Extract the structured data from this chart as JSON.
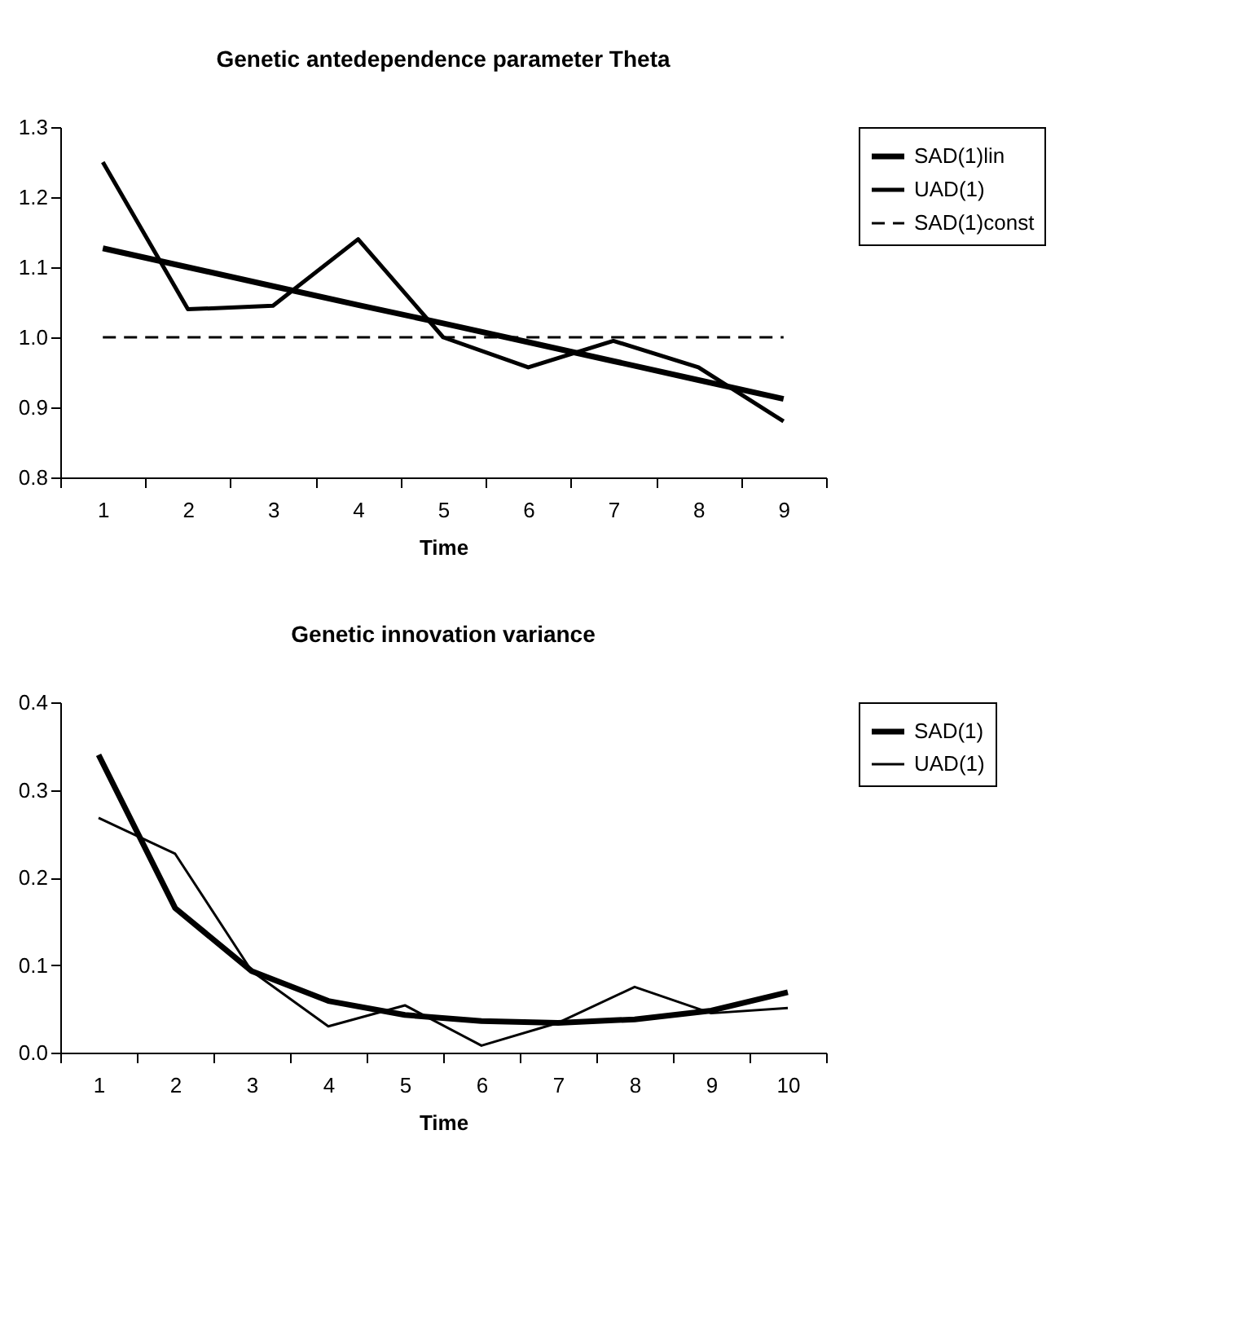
{
  "chart_data": [
    {
      "type": "line",
      "title": "Genetic antedependence parameter Theta",
      "xlabel": "Time",
      "categories": [
        "1",
        "2",
        "3",
        "4",
        "5",
        "6",
        "7",
        "8",
        "9"
      ],
      "ylim": [
        0.8,
        1.3
      ],
      "yticks": [
        {
          "value": 0.8,
          "label": "0.8"
        },
        {
          "value": 0.9,
          "label": "0.9"
        },
        {
          "value": 1.0,
          "label": "1.0"
        },
        {
          "value": 1.1,
          "label": "1.1"
        },
        {
          "value": 1.2,
          "label": "1.2"
        },
        {
          "value": 1.3,
          "label": "1.3"
        }
      ],
      "grid": false,
      "legend": "right",
      "marker": "none",
      "series": [
        {
          "name": "SAD(1)lin",
          "color": "#000000",
          "line_style": "solid",
          "values": [
            1.127,
            1.1,
            1.073,
            1.046,
            1.02,
            0.993,
            0.966,
            0.939,
            0.912
          ]
        },
        {
          "name": "UAD(1)",
          "color": "#000000",
          "line_style": "solid",
          "values": [
            1.25,
            1.04,
            1.045,
            1.14,
            1.0,
            0.957,
            0.995,
            0.957,
            0.88
          ]
        },
        {
          "name": "SAD(1)const",
          "color": "#000000",
          "line_style": "dashed",
          "values": [
            1.0,
            1.0,
            1.0,
            1.0,
            1.0,
            1.0,
            1.0,
            1.0,
            1.0
          ]
        }
      ]
    },
    {
      "type": "line",
      "title": "Genetic innovation variance",
      "xlabel": "Time",
      "categories": [
        "1",
        "2",
        "3",
        "4",
        "5",
        "6",
        "7",
        "8",
        "9",
        "10"
      ],
      "ylim": [
        0,
        0.4
      ],
      "yticks": [
        {
          "value": 0,
          "label": "0.0"
        },
        {
          "value": 0.1,
          "label": "0.1"
        },
        {
          "value": 0.2,
          "label": "0.2"
        },
        {
          "value": 0.3,
          "label": "0.3"
        },
        {
          "value": 0.4,
          "label": "0.4"
        }
      ],
      "grid": false,
      "legend": "right",
      "marker": "none",
      "series": [
        {
          "name": "SAD(1)",
          "color": "#000000",
          "line_style": "solid",
          "values": [
            0.34,
            0.165,
            0.093,
            0.059,
            0.043,
            0.036,
            0.034,
            0.038,
            0.048,
            0.069
          ]
        },
        {
          "name": "UAD(1)",
          "color": "#000000",
          "line_style": "solid",
          "values": [
            0.268,
            0.227,
            0.093,
            0.03,
            0.054,
            0.008,
            0.034,
            0.075,
            0.045,
            0.051
          ]
        }
      ]
    }
  ]
}
